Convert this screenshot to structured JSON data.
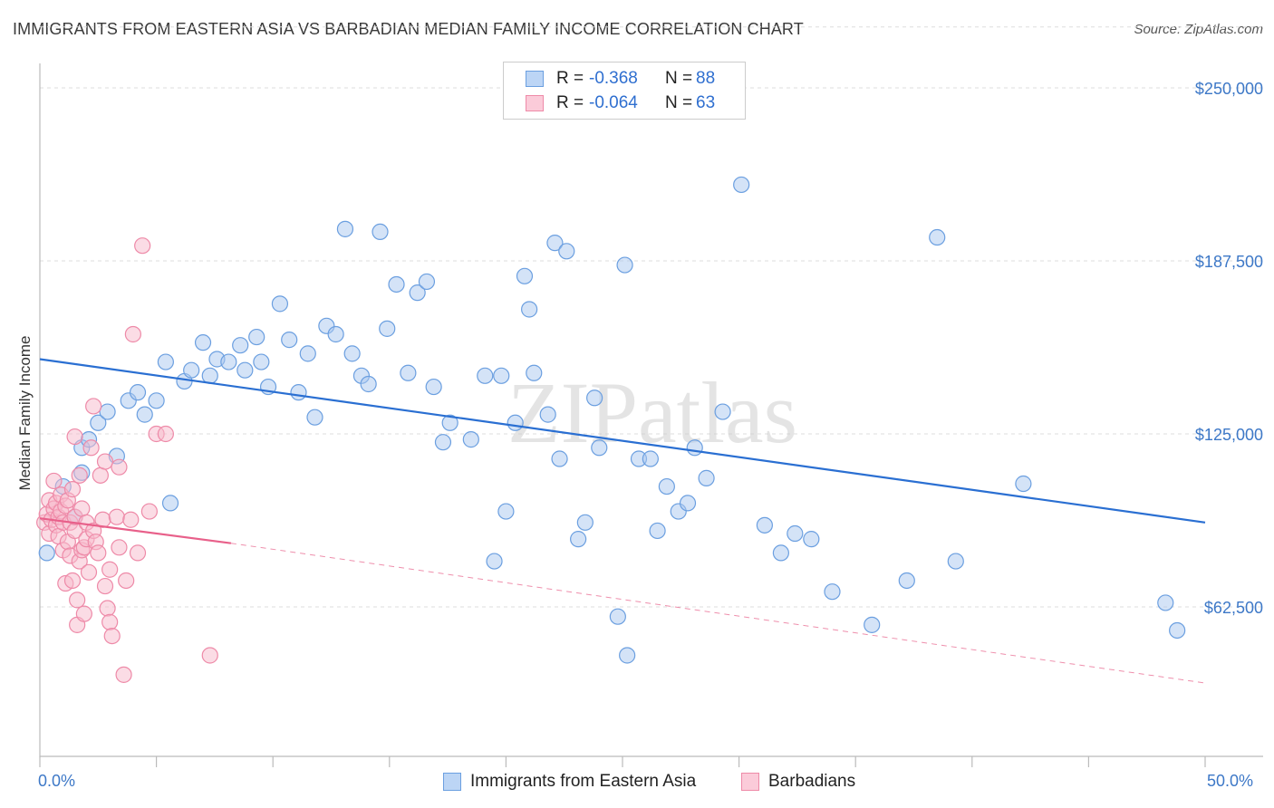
{
  "title": "IMMIGRANTS FROM EASTERN ASIA VS BARBADIAN MEDIAN FAMILY INCOME CORRELATION CHART",
  "source": "Source: ZipAtlas.com",
  "watermark": "ZIPatlas",
  "colors": {
    "blue_fill": "#a9c8f0",
    "blue_stroke": "#6b9fe0",
    "blue_line": "#2a6fd2",
    "pink_fill": "#f7b9cc",
    "pink_stroke": "#ee8aa8",
    "pink_line": "#e8608a",
    "axis_text": "#3d78c7",
    "grid": "#dddddd"
  },
  "legend": {
    "rows": [
      {
        "r_label": "R =",
        "r_value": "-0.368",
        "n_label": "N =",
        "n_value": "88"
      },
      {
        "r_label": "R =",
        "r_value": "-0.064",
        "n_label": "N =",
        "n_value": "63"
      }
    ]
  },
  "bottom_legend": [
    "Immigrants from Eastern Asia",
    "Barbadians"
  ],
  "chart_data": {
    "type": "scatter",
    "title": "IMMIGRANTS FROM EASTERN ASIA VS BARBADIAN MEDIAN FAMILY INCOME CORRELATION CHART",
    "xlabel": "",
    "ylabel": "Median Family Income",
    "xlim": [
      0,
      50
    ],
    "ylim": [
      0,
      272000
    ],
    "x_tick_labels": [
      "0.0%",
      "50.0%"
    ],
    "y_ticks": [
      62500,
      125000,
      187500,
      250000
    ],
    "y_tick_labels": [
      "$62,500",
      "$125,000",
      "$187,500",
      "$250,000"
    ],
    "grid": true,
    "legend_position": "top-center",
    "series": [
      {
        "name": "Immigrants from Eastern Asia",
        "color": "blue",
        "trend": {
          "x": [
            0,
            50
          ],
          "y": [
            152000,
            93000
          ]
        },
        "points": [
          [
            0.3,
            82000
          ],
          [
            1.0,
            106000
          ],
          [
            1.5,
            95000
          ],
          [
            1.8,
            111000
          ],
          [
            1.8,
            120000
          ],
          [
            2.1,
            123000
          ],
          [
            2.5,
            129000
          ],
          [
            2.9,
            133000
          ],
          [
            3.3,
            117000
          ],
          [
            3.8,
            137000
          ],
          [
            4.2,
            140000
          ],
          [
            4.5,
            132000
          ],
          [
            5.0,
            137000
          ],
          [
            5.4,
            151000
          ],
          [
            5.6,
            100000
          ],
          [
            6.2,
            144000
          ],
          [
            6.5,
            148000
          ],
          [
            7.0,
            158000
          ],
          [
            7.3,
            146000
          ],
          [
            7.6,
            152000
          ],
          [
            8.1,
            151000
          ],
          [
            8.6,
            157000
          ],
          [
            8.8,
            148000
          ],
          [
            9.3,
            160000
          ],
          [
            9.5,
            151000
          ],
          [
            9.8,
            142000
          ],
          [
            10.3,
            172000
          ],
          [
            10.7,
            159000
          ],
          [
            11.1,
            140000
          ],
          [
            11.5,
            154000
          ],
          [
            11.8,
            131000
          ],
          [
            12.3,
            164000
          ],
          [
            12.7,
            161000
          ],
          [
            13.1,
            199000
          ],
          [
            13.4,
            154000
          ],
          [
            13.8,
            146000
          ],
          [
            14.1,
            143000
          ],
          [
            14.6,
            198000
          ],
          [
            14.9,
            163000
          ],
          [
            15.3,
            179000
          ],
          [
            15.8,
            147000
          ],
          [
            16.2,
            176000
          ],
          [
            16.6,
            180000
          ],
          [
            16.9,
            142000
          ],
          [
            17.3,
            122000
          ],
          [
            17.6,
            129000
          ],
          [
            18.5,
            123000
          ],
          [
            19.1,
            146000
          ],
          [
            19.5,
            79000
          ],
          [
            19.8,
            146000
          ],
          [
            20.0,
            97000
          ],
          [
            20.4,
            129000
          ],
          [
            20.8,
            182000
          ],
          [
            21.0,
            170000
          ],
          [
            21.2,
            147000
          ],
          [
            21.8,
            132000
          ],
          [
            22.1,
            194000
          ],
          [
            22.3,
            116000
          ],
          [
            22.6,
            191000
          ],
          [
            23.1,
            87000
          ],
          [
            23.4,
            93000
          ],
          [
            23.8,
            138000
          ],
          [
            24.0,
            120000
          ],
          [
            24.8,
            59000
          ],
          [
            25.1,
            186000
          ],
          [
            25.7,
            116000
          ],
          [
            26.2,
            116000
          ],
          [
            26.5,
            90000
          ],
          [
            26.9,
            106000
          ],
          [
            27.4,
            97000
          ],
          [
            27.8,
            100000
          ],
          [
            28.1,
            120000
          ],
          [
            28.6,
            109000
          ],
          [
            29.3,
            133000
          ],
          [
            30.1,
            215000
          ],
          [
            31.1,
            92000
          ],
          [
            31.8,
            82000
          ],
          [
            32.4,
            89000
          ],
          [
            33.1,
            87000
          ],
          [
            34.0,
            68000
          ],
          [
            35.7,
            56000
          ],
          [
            37.2,
            72000
          ],
          [
            38.5,
            196000
          ],
          [
            39.3,
            79000
          ],
          [
            42.2,
            107000
          ],
          [
            48.3,
            64000
          ],
          [
            48.8,
            54000
          ],
          [
            25.2,
            45000
          ]
        ]
      },
      {
        "name": "Barbadians",
        "color": "pink",
        "trend_solid": {
          "x": [
            0,
            8.2
          ],
          "y": [
            94500,
            85500
          ]
        },
        "trend_dashed": {
          "x": [
            8.2,
            50
          ],
          "y": [
            85500,
            35000
          ]
        },
        "points": [
          [
            0.2,
            93000
          ],
          [
            0.3,
            96000
          ],
          [
            0.4,
            89000
          ],
          [
            0.4,
            101000
          ],
          [
            0.5,
            94000
          ],
          [
            0.6,
            98000
          ],
          [
            0.6,
            108000
          ],
          [
            0.7,
            92000
          ],
          [
            0.7,
            100000
          ],
          [
            0.8,
            95000
          ],
          [
            0.8,
            88000
          ],
          [
            0.9,
            103000
          ],
          [
            0.9,
            97000
          ],
          [
            1.0,
            83000
          ],
          [
            1.0,
            93000
          ],
          [
            1.1,
            71000
          ],
          [
            1.1,
            99000
          ],
          [
            1.2,
            86000
          ],
          [
            1.2,
            101000
          ],
          [
            1.3,
            93000
          ],
          [
            1.3,
            81000
          ],
          [
            1.4,
            72000
          ],
          [
            1.4,
            105000
          ],
          [
            1.5,
            90000
          ],
          [
            1.5,
            95000
          ],
          [
            1.6,
            65000
          ],
          [
            1.6,
            56000
          ],
          [
            1.7,
            79000
          ],
          [
            1.7,
            110000
          ],
          [
            1.8,
            98000
          ],
          [
            1.8,
            83000
          ],
          [
            1.9,
            84000
          ],
          [
            1.9,
            60000
          ],
          [
            2.0,
            93000
          ],
          [
            2.0,
            87000
          ],
          [
            2.1,
            75000
          ],
          [
            2.2,
            120000
          ],
          [
            2.3,
            90000
          ],
          [
            2.4,
            86000
          ],
          [
            2.5,
            82000
          ],
          [
            2.6,
            110000
          ],
          [
            2.7,
            94000
          ],
          [
            2.8,
            70000
          ],
          [
            2.9,
            62000
          ],
          [
            3.0,
            76000
          ],
          [
            3.0,
            57000
          ],
          [
            3.1,
            52000
          ],
          [
            3.3,
            95000
          ],
          [
            3.4,
            84000
          ],
          [
            3.6,
            38000
          ],
          [
            3.7,
            72000
          ],
          [
            3.9,
            94000
          ],
          [
            4.0,
            161000
          ],
          [
            4.2,
            82000
          ],
          [
            4.4,
            193000
          ],
          [
            4.7,
            97000
          ],
          [
            5.0,
            125000
          ],
          [
            5.4,
            125000
          ],
          [
            7.3,
            45000
          ],
          [
            2.3,
            135000
          ],
          [
            1.5,
            124000
          ],
          [
            2.8,
            115000
          ],
          [
            3.4,
            113000
          ]
        ]
      }
    ]
  }
}
